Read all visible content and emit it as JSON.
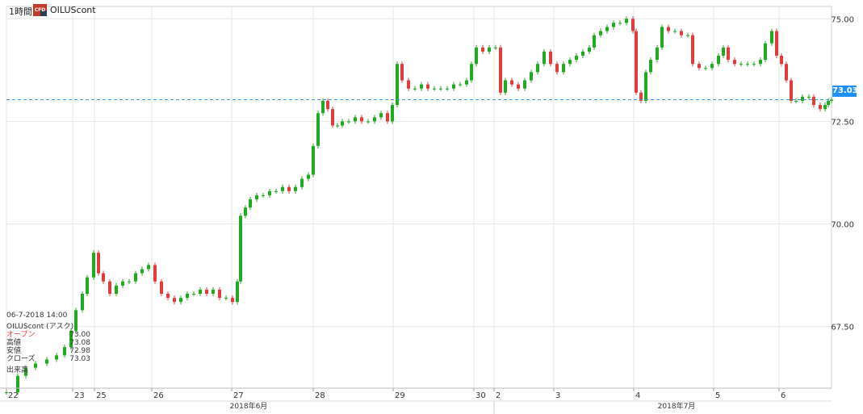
{
  "header": {
    "interval": "1時間",
    "symbol": "OILUScont",
    "badge": "CFD"
  },
  "ohlc_panel": {
    "datetime": "06-7-2018 14:00",
    "instrument": "OILUScont (アスク)",
    "rows": [
      {
        "label": "オープン",
        "value": "73.00"
      },
      {
        "label": "高値",
        "value": "73.08"
      },
      {
        "label": "安値",
        "value": "72.98"
      },
      {
        "label": "クローズ",
        "value": "73.03"
      }
    ],
    "volume_label": "出来高"
  },
  "current_price": "73.03",
  "colors": {
    "up": "#1faa1f",
    "down": "#e03c3c",
    "grid": "#e6e6e6",
    "price_line": "#3c96dc",
    "price_tag": "#1e90ff"
  },
  "chart_data": {
    "type": "candlestick",
    "title": "",
    "ylim": [
      66.0,
      75.3
    ],
    "y_ticks": [
      "75.00",
      "72.50",
      "70.00",
      "67.50"
    ],
    "x_tick_labels": [
      "22",
      "23",
      "25",
      "26",
      "27",
      "28",
      "29",
      "30",
      "2",
      "3",
      "4",
      "5",
      "6"
    ],
    "month_labels": [
      "2018年6月",
      "2018年7月"
    ],
    "price_line": 73.03,
    "close_path": [
      [
        0,
        65.9
      ],
      [
        14,
        66.3
      ],
      [
        24,
        66.5
      ],
      [
        36,
        66.6
      ],
      [
        50,
        66.7
      ],
      [
        62,
        66.8
      ],
      [
        72,
        67.0
      ],
      [
        80,
        67.4
      ],
      [
        86,
        67.9
      ],
      [
        94,
        68.3
      ],
      [
        100,
        68.7
      ],
      [
        108,
        69.3
      ],
      [
        114,
        68.8
      ],
      [
        120,
        68.6
      ],
      [
        128,
        68.3
      ],
      [
        136,
        68.5
      ],
      [
        144,
        68.6
      ],
      [
        152,
        68.6
      ],
      [
        160,
        68.8
      ],
      [
        168,
        68.9
      ],
      [
        176,
        69.0
      ],
      [
        184,
        68.6
      ],
      [
        192,
        68.3
      ],
      [
        200,
        68.2
      ],
      [
        208,
        68.1
      ],
      [
        216,
        68.2
      ],
      [
        224,
        68.3
      ],
      [
        232,
        68.3
      ],
      [
        240,
        68.4
      ],
      [
        248,
        68.3
      ],
      [
        256,
        68.4
      ],
      [
        264,
        68.2
      ],
      [
        272,
        68.2
      ],
      [
        280,
        68.1
      ],
      [
        286,
        68.6
      ],
      [
        290,
        70.2
      ],
      [
        296,
        70.4
      ],
      [
        302,
        70.6
      ],
      [
        310,
        70.7
      ],
      [
        318,
        70.7
      ],
      [
        326,
        70.8
      ],
      [
        334,
        70.8
      ],
      [
        342,
        70.9
      ],
      [
        350,
        70.8
      ],
      [
        358,
        70.9
      ],
      [
        366,
        71.1
      ],
      [
        374,
        71.2
      ],
      [
        380,
        71.9
      ],
      [
        386,
        72.7
      ],
      [
        392,
        73.0
      ],
      [
        398,
        72.8
      ],
      [
        404,
        72.4
      ],
      [
        410,
        72.4
      ],
      [
        416,
        72.5
      ],
      [
        424,
        72.5
      ],
      [
        432,
        72.6
      ],
      [
        440,
        72.5
      ],
      [
        448,
        72.5
      ],
      [
        456,
        72.6
      ],
      [
        464,
        72.7
      ],
      [
        472,
        72.5
      ],
      [
        478,
        72.9
      ],
      [
        484,
        73.9
      ],
      [
        490,
        73.5
      ],
      [
        498,
        73.3
      ],
      [
        506,
        73.3
      ],
      [
        514,
        73.4
      ],
      [
        522,
        73.3
      ],
      [
        530,
        73.3
      ],
      [
        538,
        73.3
      ],
      [
        546,
        73.3
      ],
      [
        554,
        73.4
      ],
      [
        562,
        73.4
      ],
      [
        570,
        73.5
      ],
      [
        576,
        73.9
      ],
      [
        582,
        74.3
      ],
      [
        590,
        74.2
      ],
      [
        598,
        74.3
      ],
      [
        606,
        74.3
      ],
      [
        612,
        73.2
      ],
      [
        618,
        73.5
      ],
      [
        626,
        73.4
      ],
      [
        634,
        73.3
      ],
      [
        642,
        73.5
      ],
      [
        650,
        73.7
      ],
      [
        658,
        73.9
      ],
      [
        666,
        74.2
      ],
      [
        674,
        73.9
      ],
      [
        682,
        73.7
      ],
      [
        690,
        73.9
      ],
      [
        698,
        74.0
      ],
      [
        706,
        74.1
      ],
      [
        714,
        74.2
      ],
      [
        722,
        74.3
      ],
      [
        728,
        74.6
      ],
      [
        736,
        74.7
      ],
      [
        744,
        74.8
      ],
      [
        752,
        74.9
      ],
      [
        760,
        74.9
      ],
      [
        768,
        75.0
      ],
      [
        776,
        74.7
      ],
      [
        780,
        73.2
      ],
      [
        786,
        73.0
      ],
      [
        792,
        73.7
      ],
      [
        798,
        74.0
      ],
      [
        806,
        74.3
      ],
      [
        812,
        74.8
      ],
      [
        820,
        74.7
      ],
      [
        828,
        74.7
      ],
      [
        836,
        74.6
      ],
      [
        844,
        74.6
      ],
      [
        850,
        73.9
      ],
      [
        858,
        73.8
      ],
      [
        866,
        73.8
      ],
      [
        874,
        73.9
      ],
      [
        882,
        74.1
      ],
      [
        888,
        74.3
      ],
      [
        894,
        74.0
      ],
      [
        902,
        73.9
      ],
      [
        910,
        73.9
      ],
      [
        918,
        73.9
      ],
      [
        926,
        73.9
      ],
      [
        934,
        74.0
      ],
      [
        940,
        74.4
      ],
      [
        948,
        74.7
      ],
      [
        954,
        74.1
      ],
      [
        960,
        73.9
      ],
      [
        966,
        73.5
      ],
      [
        972,
        73.0
      ],
      [
        978,
        73.0
      ],
      [
        986,
        73.1
      ],
      [
        994,
        73.1
      ],
      [
        1000,
        72.9
      ],
      [
        1008,
        72.8
      ],
      [
        1014,
        72.9
      ],
      [
        1018,
        73.0
      ],
      [
        1022,
        73.03
      ]
    ]
  }
}
